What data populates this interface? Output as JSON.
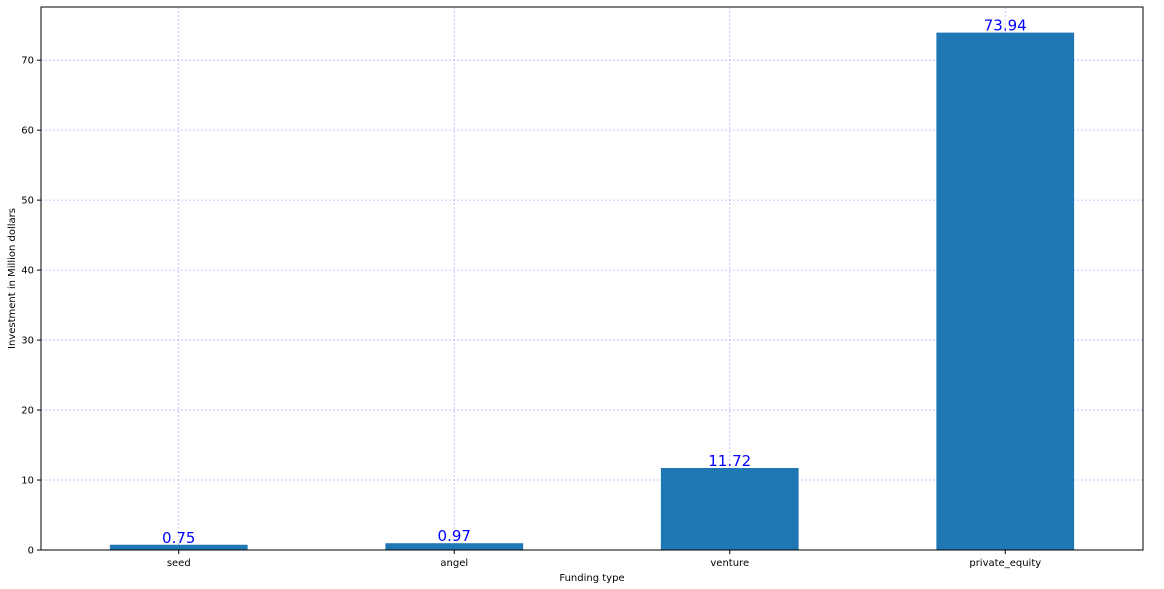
{
  "chart_data": {
    "type": "bar",
    "categories": [
      "seed",
      "angel",
      "venture",
      "private_equity"
    ],
    "values": [
      0.75,
      0.97,
      11.72,
      73.94
    ],
    "data_labels": [
      "0.75",
      "0.97",
      "11.72",
      "73.94"
    ],
    "title": "",
    "xlabel": "Funding type",
    "ylabel": "Investment in Million dollars",
    "ylim": [
      0,
      77.6
    ],
    "yticks": [
      0,
      10,
      20,
      30,
      40,
      50,
      60,
      70
    ],
    "grid": true,
    "legend": "none"
  },
  "colors": {
    "bar": "#1f77b4",
    "data_label": "#0000ff",
    "grid": "#b3b3ff",
    "axis": "#000000"
  }
}
